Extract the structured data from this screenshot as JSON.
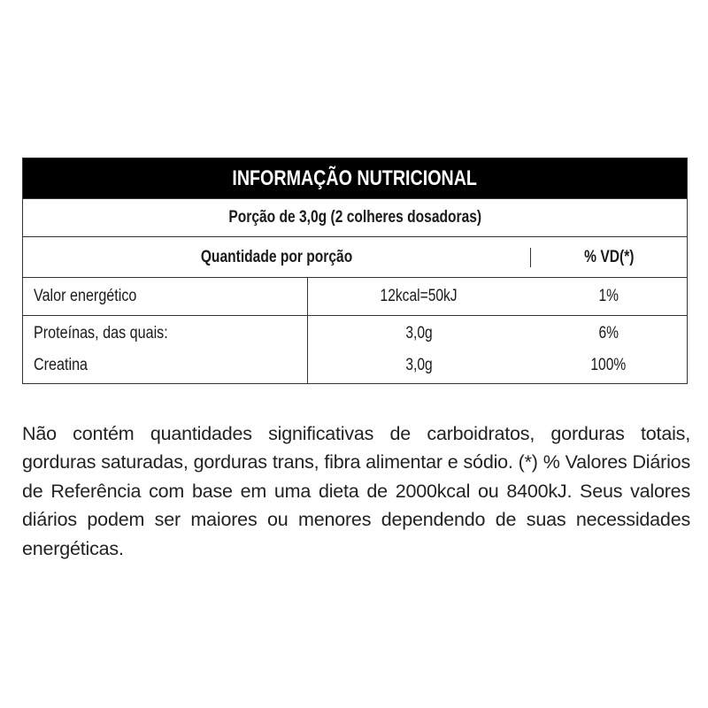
{
  "table": {
    "title": "INFORMAÇÃO NUTRICIONAL",
    "portion": "Porção de 3,0g (2 colheres dosadoras)",
    "quantity_header": "Quantidade por porção",
    "vd_header": "% VD(*)",
    "rows": [
      {
        "label": "Valor energético",
        "amount": "12kcal=50kJ",
        "vd": "1%"
      },
      {
        "label": "Proteínas, das quais:",
        "amount": "3,0g",
        "vd": "6%"
      },
      {
        "label": "Creatina",
        "amount": "3,0g",
        "vd": "100%"
      }
    ]
  },
  "footnote": "Não contém quantidades significativas de carboidratos, gorduras totais, gorduras saturadas, gorduras trans, fibra alimentar e sódio. (*) % Valores Diários de Referência com base em uma dieta de 2000kcal ou 8400kJ. Seus valores diários podem ser maiores ou menores dependendo de suas necessidades energéticas."
}
